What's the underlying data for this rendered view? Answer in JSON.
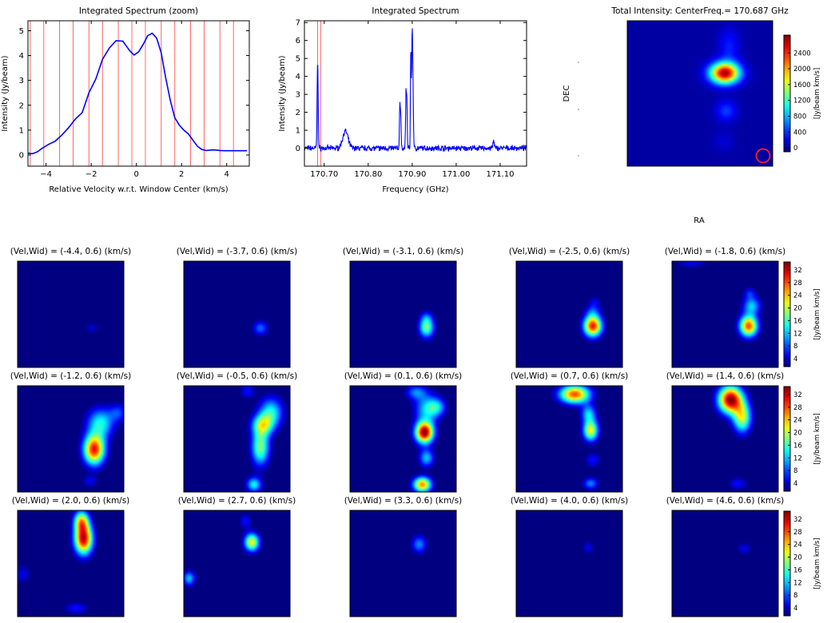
{
  "chart_data": [
    {
      "type": "line",
      "title": "Integrated Spectrum (zoom)",
      "xlabel": "Relative Velocity w.r.t. Window Center (km/s)",
      "ylabel": "Intensity (Jy/beam)",
      "xlim": [
        -4.8,
        5.0
      ],
      "ylim": [
        -0.45,
        5.4
      ],
      "xticks": [
        -4,
        -2,
        0,
        2,
        4
      ],
      "yticks": [
        0,
        1,
        2,
        3,
        4,
        5
      ],
      "series_color": "#0000ff",
      "marker_color": "#ff6666",
      "channel_markers": [
        -4.7,
        -4.1,
        -3.4,
        -2.8,
        -2.1,
        -1.5,
        -0.8,
        -0.2,
        0.4,
        1.1,
        1.7,
        2.4,
        3.0,
        3.7,
        4.3
      ],
      "x": [
        -4.8,
        -4.6,
        -4.4,
        -4.2,
        -3.9,
        -3.6,
        -3.3,
        -3.0,
        -2.7,
        -2.4,
        -2.1,
        -1.8,
        -1.5,
        -1.2,
        -0.9,
        -0.6,
        -0.3,
        -0.1,
        0.1,
        0.3,
        0.5,
        0.7,
        0.9,
        1.1,
        1.3,
        1.5,
        1.7,
        1.9,
        2.1,
        2.3,
        2.5,
        2.7,
        2.9,
        3.1,
        3.3,
        3.5,
        3.7,
        3.9,
        4.1,
        4.3,
        4.5,
        4.7,
        4.9
      ],
      "y": [
        0.07,
        0.05,
        0.12,
        0.25,
        0.42,
        0.55,
        0.8,
        1.1,
        1.45,
        1.7,
        2.5,
        3.05,
        3.85,
        4.3,
        4.6,
        4.58,
        4.2,
        4.02,
        4.15,
        4.45,
        4.8,
        4.9,
        4.7,
        4.1,
        3.1,
        2.2,
        1.5,
        1.2,
        1.0,
        0.85,
        0.6,
        0.35,
        0.22,
        0.18,
        0.2,
        0.2,
        0.18,
        0.17,
        0.17,
        0.17,
        0.17,
        0.17,
        0.17
      ]
    },
    {
      "type": "line",
      "title": "Integrated Spectrum",
      "xlabel": "Frequency (GHz)",
      "ylabel": "Intensity (Jy/beam)",
      "xlim": [
        170.655,
        171.16
      ],
      "ylim": [
        -1.0,
        7.1
      ],
      "xticks": [
        170.7,
        170.8,
        170.9,
        171.0,
        171.1
      ],
      "xticklabels": [
        "170.70",
        "170.80",
        "170.90",
        "171.00",
        "171.10"
      ],
      "yticks": [
        0,
        1,
        2,
        3,
        4,
        5,
        6,
        7
      ],
      "series_color": "#0000ff",
      "marker_color": "#ff6666",
      "markers": [
        170.685,
        170.692
      ],
      "peaks": [
        {
          "x": 170.685,
          "y": 4.9,
          "w": 0.0012
        },
        {
          "x": 170.748,
          "y": 0.95,
          "w": 0.006
        },
        {
          "x": 170.872,
          "y": 2.6,
          "w": 0.0009
        },
        {
          "x": 170.874,
          "y": 1.8,
          "w": 0.0008
        },
        {
          "x": 170.886,
          "y": 3.2,
          "w": 0.001
        },
        {
          "x": 170.888,
          "y": 2.3,
          "w": 0.0008
        },
        {
          "x": 170.897,
          "y": 5.5,
          "w": 0.0009
        },
        {
          "x": 170.9,
          "y": 6.4,
          "w": 0.0011
        },
        {
          "x": 170.902,
          "y": 2.5,
          "w": 0.001
        },
        {
          "x": 171.085,
          "y": 0.4,
          "w": 0.0015
        }
      ],
      "noise_level": 0.12
    },
    {
      "type": "heatmap",
      "title": "Total Intensity: CenterFreq.= 170.687 GHz",
      "xlabel": "RA",
      "ylabel": "DEC",
      "colorbar_label": "[Jy/beam km/s]",
      "colorbar_ticks": [
        0,
        400,
        800,
        1200,
        1600,
        2000,
        2400
      ],
      "colorbar_range": [
        -100,
        2850
      ],
      "colormap": "jet",
      "beam_color": "#ff2020",
      "sources": [
        {
          "x": 0.67,
          "y": 0.36,
          "sx": 0.07,
          "sy": 0.05,
          "a": 2750
        },
        {
          "x": 0.7,
          "y": 0.18,
          "sx": 0.05,
          "sy": 0.09,
          "a": 350
        },
        {
          "x": 0.68,
          "y": 0.62,
          "sx": 0.05,
          "sy": 0.05,
          "a": 450
        },
        {
          "x": 0.66,
          "y": 0.83,
          "sx": 0.05,
          "sy": 0.05,
          "a": 150
        }
      ]
    },
    {
      "type": "heatmap",
      "panel_type": "channel_maps",
      "colormap": "jet",
      "colorbar_label": "[Jy/beam km/s]",
      "colorbar_ticks": [
        4,
        8,
        12,
        16,
        20,
        24,
        28,
        32
      ],
      "colorbar_range": [
        1.5,
        34.5
      ],
      "panels": [
        {
          "title": "(Vel,Wid) = (-4.4, 0.6) (km/s)",
          "sources": [
            {
              "x": 0.7,
              "y": 0.63,
              "sx": 0.05,
              "sy": 0.04,
              "a": 4
            }
          ]
        },
        {
          "title": "(Vel,Wid) = (-3.7, 0.6) (km/s)",
          "sources": [
            {
              "x": 0.72,
              "y": 0.63,
              "sx": 0.05,
              "sy": 0.05,
              "a": 9
            }
          ]
        },
        {
          "title": "(Vel,Wid) = (-3.1, 0.6) (km/s)",
          "sources": [
            {
              "x": 0.72,
              "y": 0.62,
              "sx": 0.05,
              "sy": 0.07,
              "a": 18
            },
            {
              "x": 0.72,
              "y": 0.52,
              "sx": 0.04,
              "sy": 0.04,
              "a": 4
            }
          ]
        },
        {
          "title": "(Vel,Wid) = (-2.5, 0.6) (km/s)",
          "sources": [
            {
              "x": 0.72,
              "y": 0.61,
              "sx": 0.06,
              "sy": 0.07,
              "a": 30
            },
            {
              "x": 0.72,
              "y": 0.47,
              "sx": 0.05,
              "sy": 0.05,
              "a": 6
            },
            {
              "x": 0.74,
              "y": 0.38,
              "sx": 0.04,
              "sy": 0.04,
              "a": 4
            }
          ]
        },
        {
          "title": "(Vel,Wid) = (-1.8, 0.6) (km/s)",
          "sources": [
            {
              "x": 0.72,
              "y": 0.61,
              "sx": 0.06,
              "sy": 0.07,
              "a": 28
            },
            {
              "x": 0.75,
              "y": 0.42,
              "sx": 0.06,
              "sy": 0.06,
              "a": 12
            },
            {
              "x": 0.73,
              "y": 0.3,
              "sx": 0.04,
              "sy": 0.04,
              "a": 6
            },
            {
              "x": 0.18,
              "y": 0.02,
              "sx": 0.1,
              "sy": 0.03,
              "a": 5
            }
          ]
        },
        {
          "title": "(Vel,Wid) = (-1.2, 0.6) (km/s)",
          "sources": [
            {
              "x": 0.72,
              "y": 0.6,
              "sx": 0.07,
              "sy": 0.1,
              "a": 30
            },
            {
              "x": 0.78,
              "y": 0.35,
              "sx": 0.09,
              "sy": 0.1,
              "a": 14
            },
            {
              "x": 0.95,
              "y": 0.25,
              "sx": 0.06,
              "sy": 0.06,
              "a": 7
            },
            {
              "x": 0.68,
              "y": 0.9,
              "sx": 0.05,
              "sy": 0.04,
              "a": 5
            }
          ]
        },
        {
          "title": "(Vel,Wid) = (-0.5, 0.6) (km/s)",
          "sources": [
            {
              "x": 0.72,
              "y": 0.58,
              "sx": 0.06,
              "sy": 0.12,
              "a": 18
            },
            {
              "x": 0.74,
              "y": 0.37,
              "sx": 0.07,
              "sy": 0.07,
              "a": 16
            },
            {
              "x": 0.82,
              "y": 0.25,
              "sx": 0.08,
              "sy": 0.1,
              "a": 14
            },
            {
              "x": 0.66,
              "y": 0.93,
              "sx": 0.05,
              "sy": 0.05,
              "a": 14
            },
            {
              "x": 0.6,
              "y": 0.05,
              "sx": 0.05,
              "sy": 0.05,
              "a": 6
            }
          ]
        },
        {
          "title": "(Vel,Wid) = (0.1, 0.6) (km/s)",
          "sources": [
            {
              "x": 0.7,
              "y": 0.44,
              "sx": 0.06,
              "sy": 0.07,
              "a": 34
            },
            {
              "x": 0.68,
              "y": 0.93,
              "sx": 0.06,
              "sy": 0.05,
              "a": 26
            },
            {
              "x": 0.72,
              "y": 0.68,
              "sx": 0.05,
              "sy": 0.06,
              "a": 12
            },
            {
              "x": 0.72,
              "y": 0.22,
              "sx": 0.08,
              "sy": 0.1,
              "a": 12
            },
            {
              "x": 0.82,
              "y": 0.2,
              "sx": 0.06,
              "sy": 0.06,
              "a": 10
            },
            {
              "x": 0.62,
              "y": 0.06,
              "sx": 0.07,
              "sy": 0.05,
              "a": 9
            }
          ]
        },
        {
          "title": "(Vel,Wid) = (0.7, 0.6) (km/s)",
          "sources": [
            {
              "x": 0.55,
              "y": 0.08,
              "sx": 0.1,
              "sy": 0.06,
              "a": 28
            },
            {
              "x": 0.7,
              "y": 0.42,
              "sx": 0.05,
              "sy": 0.07,
              "a": 22
            },
            {
              "x": 0.68,
              "y": 0.26,
              "sx": 0.05,
              "sy": 0.06,
              "a": 12
            },
            {
              "x": 0.7,
              "y": 0.92,
              "sx": 0.05,
              "sy": 0.04,
              "a": 10
            },
            {
              "x": 0.72,
              "y": 0.7,
              "sx": 0.05,
              "sy": 0.05,
              "a": 6
            }
          ]
        },
        {
          "title": "(Vel,Wid) = (1.4, 0.6) (km/s)",
          "sources": [
            {
              "x": 0.55,
              "y": 0.13,
              "sx": 0.08,
              "sy": 0.09,
              "a": 34
            },
            {
              "x": 0.66,
              "y": 0.3,
              "sx": 0.06,
              "sy": 0.1,
              "a": 20
            },
            {
              "x": 0.62,
              "y": 0.92,
              "sx": 0.06,
              "sy": 0.04,
              "a": 6
            }
          ]
        },
        {
          "title": "(Vel,Wid) = (2.0, 0.6) (km/s)",
          "sources": [
            {
              "x": 0.62,
              "y": 0.27,
              "sx": 0.06,
              "sy": 0.1,
              "a": 32
            },
            {
              "x": 0.6,
              "y": 0.1,
              "sx": 0.05,
              "sy": 0.07,
              "a": 20
            },
            {
              "x": 0.55,
              "y": 0.92,
              "sx": 0.08,
              "sy": 0.04,
              "a": 6
            },
            {
              "x": 0.05,
              "y": 0.6,
              "sx": 0.05,
              "sy": 0.06,
              "a": 5
            }
          ]
        },
        {
          "title": "(Vel,Wid) = (2.7, 0.6) (km/s)",
          "sources": [
            {
              "x": 0.64,
              "y": 0.3,
              "sx": 0.05,
              "sy": 0.06,
              "a": 22
            },
            {
              "x": 0.58,
              "y": 0.1,
              "sx": 0.04,
              "sy": 0.05,
              "a": 6
            },
            {
              "x": 0.05,
              "y": 0.64,
              "sx": 0.04,
              "sy": 0.05,
              "a": 12
            }
          ]
        },
        {
          "title": "(Vel,Wid) = (3.3, 0.6) (km/s)",
          "sources": [
            {
              "x": 0.65,
              "y": 0.32,
              "sx": 0.05,
              "sy": 0.06,
              "a": 10
            }
          ]
        },
        {
          "title": "(Vel,Wid) = (4.0, 0.6) (km/s)",
          "sources": [
            {
              "x": 0.68,
              "y": 0.35,
              "sx": 0.04,
              "sy": 0.04,
              "a": 5
            }
          ]
        },
        {
          "title": "(Vel,Wid) = (4.6, 0.6) (km/s)",
          "sources": [
            {
              "x": 0.68,
              "y": 0.36,
              "sx": 0.05,
              "sy": 0.04,
              "a": 5
            }
          ]
        }
      ]
    }
  ]
}
